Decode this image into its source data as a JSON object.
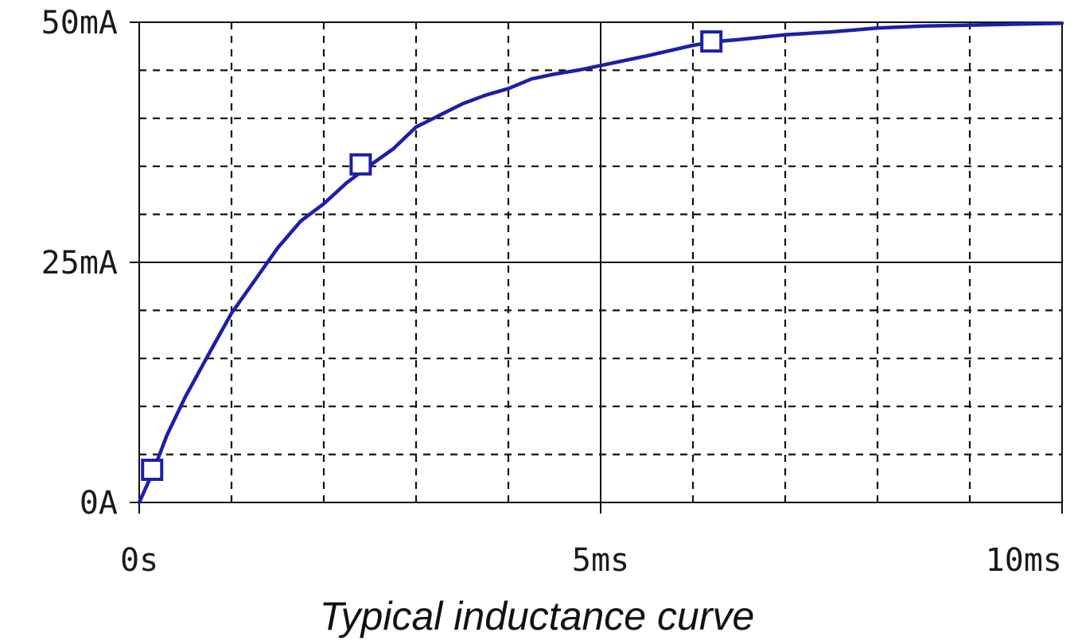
{
  "chart_data": {
    "type": "line",
    "title": "",
    "caption": "Typical inductance curve",
    "xlabel": "",
    "ylabel": "",
    "xlim": [
      0,
      10
    ],
    "ylim": [
      0,
      50
    ],
    "x_ticks": [
      {
        "value": 0,
        "label": "0s"
      },
      {
        "value": 5,
        "label": "5ms"
      },
      {
        "value": 10,
        "label": "10ms"
      }
    ],
    "y_ticks": [
      {
        "value": 0,
        "label": "0A"
      },
      {
        "value": 25,
        "label": "25mA"
      },
      {
        "value": 50,
        "label": "50mA"
      }
    ],
    "grid": "dashed",
    "x_minor_step": 1,
    "y_minor_step": 5,
    "series": [
      {
        "color": "#1c1fa8",
        "x": [
          0,
          0.15,
          0.3,
          0.5,
          0.75,
          1.0,
          1.25,
          1.5,
          1.75,
          2.0,
          2.25,
          2.5,
          2.75,
          3.0,
          3.25,
          3.5,
          3.75,
          4.0,
          4.25,
          4.5,
          4.75,
          5.0,
          5.5,
          6.0,
          6.25,
          6.5,
          7.0,
          7.5,
          8.0,
          8.5,
          9.0,
          9.5,
          10.0
        ],
        "values": [
          0,
          3.2,
          7.0,
          11.0,
          15.4,
          19.7,
          23.1,
          26.5,
          29.3,
          31.1,
          33.3,
          35.1,
          36.8,
          39.1,
          40.3,
          41.5,
          42.4,
          43.1,
          44.1,
          44.6,
          45.0,
          45.5,
          46.5,
          47.6,
          48.0,
          48.2,
          48.7,
          49.0,
          49.4,
          49.6,
          49.7,
          49.8,
          49.9
        ]
      }
    ],
    "markers": [
      {
        "x": 0.14,
        "value": 3.4
      },
      {
        "x": 2.4,
        "value": 35.2
      },
      {
        "x": 6.2,
        "value": 48.0
      }
    ]
  }
}
